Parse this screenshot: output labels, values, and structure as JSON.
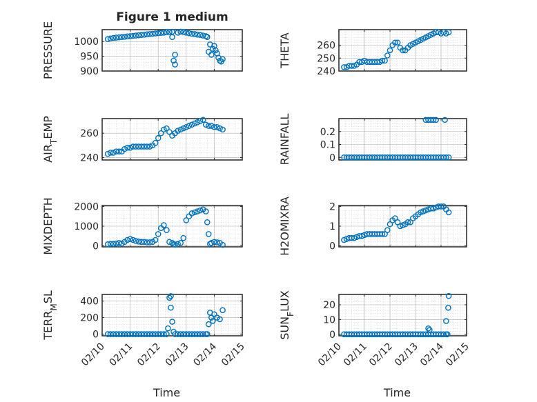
{
  "chart_data": [
    {
      "type": "scatter",
      "title": "Figure 1 medium",
      "ylabel": "PRESSURE",
      "xlabel": "",
      "xlim": [
        0,
        5
      ],
      "ylim": [
        900,
        1040
      ],
      "yticks": [
        900,
        950,
        1000
      ],
      "xticks": [
        0,
        1,
        2,
        3,
        4,
        5
      ],
      "xticklabels": [],
      "marker_color": "#0072BD",
      "grid": "on",
      "x": [
        0.2,
        0.3,
        0.4,
        0.5,
        0.6,
        0.7,
        0.8,
        0.9,
        1.0,
        1.1,
        1.2,
        1.3,
        1.4,
        1.5,
        1.6,
        1.7,
        1.8,
        1.9,
        2.0,
        2.1,
        2.2,
        2.3,
        2.4,
        2.5,
        2.5,
        2.55,
        2.6,
        2.6,
        2.7,
        2.8,
        2.9,
        3.0,
        3.1,
        3.2,
        3.3,
        3.4,
        3.5,
        3.6,
        3.7,
        3.75,
        3.8,
        3.85,
        3.9,
        3.95,
        4.0,
        4.05,
        4.1,
        4.15,
        4.2,
        4.25,
        4.3
      ],
      "y": [
        1008,
        1010,
        1012,
        1013,
        1014,
        1015,
        1016,
        1017,
        1018,
        1019,
        1020,
        1021,
        1022,
        1023,
        1024,
        1025,
        1026,
        1027,
        1028,
        1029,
        1030,
        1031,
        1032,
        1033,
        1015,
        935,
        922,
        955,
        1030,
        1033,
        1032,
        1030,
        1028,
        1026,
        1025,
        1023,
        1022,
        1020,
        1018,
        1015,
        965,
        990,
        955,
        975,
        985,
        970,
        960,
        945,
        935,
        932,
        940
      ]
    },
    {
      "type": "scatter",
      "ylabel": "THETA",
      "xlabel": "",
      "xlim": [
        0,
        5
      ],
      "ylim": [
        240,
        272
      ],
      "yticks": [
        240,
        250,
        260
      ],
      "xticks": [
        0,
        1,
        2,
        3,
        4,
        5
      ],
      "xticklabels": [],
      "marker_color": "#0072BD",
      "grid": "on",
      "x": [
        0.2,
        0.3,
        0.4,
        0.5,
        0.6,
        0.7,
        0.8,
        0.9,
        1.0,
        1.1,
        1.2,
        1.3,
        1.4,
        1.5,
        1.6,
        1.7,
        1.8,
        1.9,
        2.0,
        2.1,
        2.2,
        2.3,
        2.4,
        2.5,
        2.6,
        2.7,
        2.8,
        2.9,
        3.0,
        3.1,
        3.2,
        3.3,
        3.4,
        3.5,
        3.6,
        3.7,
        3.8,
        3.9,
        4.0,
        4.1,
        4.2,
        4.3
      ],
      "y": [
        243,
        243,
        244,
        244,
        244,
        245,
        247,
        247,
        248,
        247,
        247,
        247,
        247,
        247,
        247,
        248,
        248,
        252,
        256,
        260,
        262,
        262,
        258,
        256,
        256,
        258,
        260,
        261,
        262,
        263,
        264,
        265,
        266,
        267,
        268,
        269,
        270,
        270,
        269,
        270,
        269,
        270
      ]
    },
    {
      "type": "scatter",
      "ylabel": "AIR_TEMP",
      "xlabel": "",
      "xlim": [
        0,
        5
      ],
      "ylim": [
        238,
        272
      ],
      "yticks": [
        240,
        260
      ],
      "xticks": [
        0,
        1,
        2,
        3,
        4,
        5
      ],
      "xticklabels": [],
      "marker_color": "#0072BD",
      "grid": "on",
      "x": [
        0.2,
        0.3,
        0.4,
        0.5,
        0.6,
        0.7,
        0.8,
        0.9,
        1.0,
        1.1,
        1.2,
        1.3,
        1.4,
        1.5,
        1.6,
        1.7,
        1.8,
        1.9,
        2.0,
        2.1,
        2.2,
        2.3,
        2.4,
        2.5,
        2.6,
        2.7,
        2.8,
        2.9,
        3.0,
        3.1,
        3.2,
        3.3,
        3.4,
        3.5,
        3.6,
        3.7,
        3.8,
        3.9,
        4.0,
        4.1,
        4.2,
        4.3
      ],
      "y": [
        243,
        244,
        244,
        245,
        245,
        245,
        247,
        248,
        248,
        249,
        249,
        249,
        249,
        249,
        249,
        249,
        250,
        252,
        256,
        260,
        263,
        264,
        261,
        258,
        260,
        262,
        263,
        264,
        265,
        266,
        267,
        268,
        269,
        270,
        271,
        267,
        266,
        266,
        265,
        265,
        264,
        263
      ]
    },
    {
      "type": "scatter",
      "ylabel": "RAINFALL",
      "xlabel": "",
      "xlim": [
        0,
        5
      ],
      "ylim": [
        -0.02,
        0.3
      ],
      "yticks": [
        0,
        0.1,
        0.2
      ],
      "xticks": [
        0,
        1,
        2,
        3,
        4,
        5
      ],
      "xticklabels": [],
      "marker_color": "#0072BD",
      "grid": "on",
      "x": [
        0.2,
        0.3,
        0.4,
        0.5,
        0.6,
        0.7,
        0.8,
        0.9,
        1.0,
        1.1,
        1.2,
        1.3,
        1.4,
        1.5,
        1.6,
        1.7,
        1.8,
        1.9,
        2.0,
        2.1,
        2.2,
        2.3,
        2.4,
        2.5,
        2.6,
        2.7,
        2.8,
        2.9,
        3.0,
        3.1,
        3.2,
        3.3,
        3.4,
        3.5,
        3.6,
        3.7,
        3.8,
        3.9,
        4.0,
        4.1,
        4.2,
        4.3,
        3.4,
        3.5,
        3.6,
        3.7,
        3.8,
        4.15
      ],
      "y": [
        0,
        0,
        0,
        0,
        0,
        0,
        0,
        0,
        0,
        0,
        0,
        0,
        0,
        0,
        0,
        0,
        0,
        0,
        0,
        0,
        0,
        0,
        0,
        0,
        0,
        0,
        0,
        0,
        0,
        0,
        0,
        0,
        0,
        0,
        0,
        0,
        0,
        0,
        0,
        0,
        0,
        0,
        0.29,
        0.29,
        0.29,
        0.29,
        0.29,
        0.29
      ]
    },
    {
      "type": "scatter",
      "ylabel": "MIXDEPTH",
      "xlabel": "",
      "xlim": [
        0,
        5
      ],
      "ylim": [
        -50,
        2050
      ],
      "yticks": [
        0,
        1000,
        2000
      ],
      "xticks": [
        0,
        1,
        2,
        3,
        4,
        5
      ],
      "xticklabels": [],
      "marker_color": "#0072BD",
      "grid": "on",
      "x": [
        0.2,
        0.3,
        0.4,
        0.5,
        0.6,
        0.7,
        0.8,
        0.9,
        1.0,
        1.1,
        1.2,
        1.3,
        1.4,
        1.5,
        1.6,
        1.7,
        1.8,
        1.9,
        2.0,
        2.1,
        2.2,
        2.3,
        2.4,
        2.5,
        2.55,
        2.6,
        2.7,
        2.8,
        2.9,
        3.0,
        3.1,
        3.2,
        3.3,
        3.4,
        3.5,
        3.6,
        3.7,
        3.75,
        3.8,
        3.85,
        3.9,
        4.0,
        4.1,
        4.2,
        4.3
      ],
      "y": [
        80,
        100,
        100,
        120,
        150,
        120,
        200,
        300,
        350,
        300,
        250,
        220,
        200,
        200,
        180,
        180,
        200,
        300,
        600,
        900,
        1050,
        800,
        200,
        150,
        80,
        60,
        100,
        150,
        400,
        1300,
        1500,
        1650,
        1700,
        1750,
        1800,
        1850,
        1750,
        1200,
        600,
        100,
        150,
        200,
        180,
        150,
        50
      ]
    },
    {
      "type": "scatter",
      "ylabel": "H2OMIXRA",
      "xlabel": "",
      "xlim": [
        0,
        5
      ],
      "ylim": [
        -0.05,
        2.05
      ],
      "yticks": [
        0,
        1,
        2
      ],
      "xticks": [
        0,
        1,
        2,
        3,
        4,
        5
      ],
      "xticklabels": [],
      "marker_color": "#0072BD",
      "grid": "on",
      "x": [
        0.2,
        0.3,
        0.4,
        0.5,
        0.6,
        0.7,
        0.8,
        0.9,
        1.0,
        1.1,
        1.2,
        1.3,
        1.4,
        1.5,
        1.6,
        1.7,
        1.8,
        1.9,
        2.0,
        2.1,
        2.2,
        2.3,
        2.4,
        2.5,
        2.6,
        2.7,
        2.8,
        2.9,
        3.0,
        3.1,
        3.2,
        3.3,
        3.4,
        3.5,
        3.6,
        3.7,
        3.8,
        3.9,
        4.0,
        4.1,
        4.2,
        4.3
      ],
      "y": [
        0.3,
        0.35,
        0.4,
        0.4,
        0.4,
        0.45,
        0.5,
        0.5,
        0.55,
        0.6,
        0.6,
        0.6,
        0.6,
        0.6,
        0.6,
        0.6,
        0.6,
        0.8,
        1.1,
        1.3,
        1.4,
        1.2,
        1.0,
        1.05,
        1.1,
        1.2,
        1.2,
        1.4,
        1.5,
        1.6,
        1.7,
        1.75,
        1.8,
        1.85,
        1.9,
        1.9,
        1.95,
        2.0,
        2.0,
        2.0,
        1.85,
        1.7
      ]
    },
    {
      "type": "scatter",
      "ylabel": "TERR_MSL",
      "xlabel": "Time",
      "xlim": [
        0,
        5
      ],
      "ylim": [
        -20,
        480
      ],
      "yticks": [
        0,
        200,
        400
      ],
      "xticks": [
        0,
        1,
        2,
        3,
        4,
        5
      ],
      "xticklabels": [
        "02/10",
        "02/11",
        "02/12",
        "02/13",
        "02/14",
        "02/15"
      ],
      "marker_color": "#0072BD",
      "grid": "on",
      "x": [
        0.2,
        0.3,
        0.4,
        0.5,
        0.6,
        0.7,
        0.8,
        0.9,
        1.0,
        1.1,
        1.2,
        1.3,
        1.4,
        1.5,
        1.6,
        1.7,
        1.8,
        1.9,
        2.0,
        2.1,
        2.2,
        2.3,
        2.35,
        2.4,
        2.45,
        2.45,
        2.5,
        2.55,
        2.6,
        2.7,
        2.8,
        2.9,
        3.0,
        3.1,
        3.2,
        3.3,
        3.4,
        3.5,
        3.6,
        3.7,
        3.75,
        3.8,
        3.85,
        3.9,
        3.95,
        4.0,
        4.1,
        4.2,
        4.3
      ],
      "y": [
        0,
        0,
        0,
        0,
        0,
        0,
        0,
        0,
        0,
        0,
        0,
        0,
        0,
        0,
        0,
        0,
        0,
        0,
        0,
        0,
        0,
        0,
        70,
        440,
        460,
        320,
        150,
        30,
        0,
        0,
        0,
        0,
        0,
        0,
        0,
        0,
        0,
        0,
        0,
        0,
        0,
        120,
        260,
        200,
        160,
        240,
        200,
        180,
        290
      ]
    },
    {
      "type": "scatter",
      "ylabel": "SUN_FLUX",
      "xlabel": "Time",
      "xlim": [
        0,
        5
      ],
      "ylim": [
        -1,
        27
      ],
      "yticks": [
        0,
        10,
        20
      ],
      "xticks": [
        0,
        1,
        2,
        3,
        4,
        5
      ],
      "xticklabels": [
        "02/10",
        "02/11",
        "02/12",
        "02/13",
        "02/14",
        "02/15"
      ],
      "marker_color": "#0072BD",
      "grid": "on",
      "x": [
        0.2,
        0.3,
        0.4,
        0.5,
        0.6,
        0.7,
        0.8,
        0.9,
        1.0,
        1.1,
        1.2,
        1.3,
        1.4,
        1.5,
        1.6,
        1.7,
        1.8,
        1.9,
        2.0,
        2.1,
        2.2,
        2.3,
        2.4,
        2.5,
        2.6,
        2.7,
        2.8,
        2.9,
        3.0,
        3.1,
        3.2,
        3.3,
        3.4,
        3.5,
        3.6,
        3.7,
        3.8,
        3.9,
        4.0,
        4.1,
        4.2,
        4.25,
        4.3,
        4.28,
        4.2,
        3.5,
        3.55
      ],
      "y": [
        0,
        0,
        0,
        0,
        0,
        0,
        0,
        0,
        0,
        0,
        0,
        0,
        0,
        0,
        0,
        0,
        0,
        0,
        0,
        0,
        0,
        0,
        0,
        0,
        0,
        0,
        0,
        0,
        0,
        0,
        0,
        0,
        0,
        0,
        0,
        0,
        0,
        0,
        0,
        0,
        0,
        0,
        26,
        18,
        9,
        4,
        3
      ]
    }
  ]
}
